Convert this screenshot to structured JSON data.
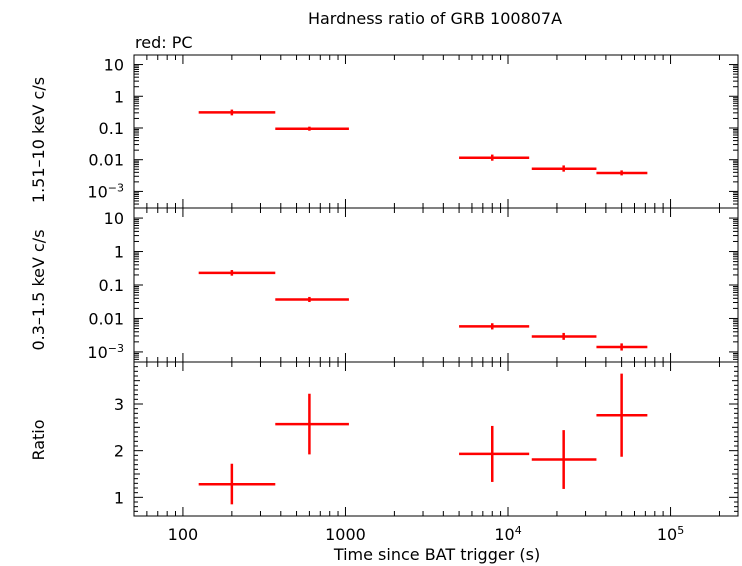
{
  "chart_data": {
    "type": "scatter",
    "title": "Hardness ratio of GRB 100807A",
    "annotation": "red: PC",
    "xlabel": "Time since BAT trigger (s)",
    "x_scale": "log",
    "xlim": [
      50,
      260000
    ],
    "x_ticks": [
      {
        "value": 100,
        "label": "100"
      },
      {
        "value": 1000,
        "label": "1000"
      },
      {
        "value": 10000,
        "label": "10",
        "sup": "4"
      },
      {
        "value": 100000,
        "label": "10",
        "sup": "5"
      }
    ],
    "color": "#ff0000",
    "panels": [
      {
        "ylabel": "1.51–10 keV c/s",
        "y_scale": "log",
        "ylim": [
          0.0003,
          20
        ],
        "y_ticks": [
          {
            "value": 10,
            "label": "10"
          },
          {
            "value": 1,
            "label": "1"
          },
          {
            "value": 0.1,
            "label": "0.1"
          },
          {
            "value": 0.01,
            "label": "0.01"
          },
          {
            "value": 0.001,
            "label": "10",
            "sup": "−3"
          }
        ],
        "points": [
          {
            "x": 200,
            "xlo": 125,
            "xhi": 370,
            "y": 0.31,
            "ylo": 0.25,
            "yhi": 0.38
          },
          {
            "x": 600,
            "xlo": 370,
            "xhi": 1050,
            "y": 0.095,
            "ylo": 0.082,
            "yhi": 0.11
          },
          {
            "x": 8000,
            "xlo": 5000,
            "xhi": 13500,
            "y": 0.0115,
            "ylo": 0.0093,
            "yhi": 0.0145
          },
          {
            "x": 22000,
            "xlo": 14000,
            "xhi": 35000,
            "y": 0.0052,
            "ylo": 0.0042,
            "yhi": 0.0066
          },
          {
            "x": 50000,
            "xlo": 35000,
            "xhi": 72000,
            "y": 0.0038,
            "ylo": 0.0032,
            "yhi": 0.0046
          }
        ]
      },
      {
        "ylabel": "0.3–1.5 keV c/s",
        "y_scale": "log",
        "ylim": [
          0.0005,
          20
        ],
        "y_ticks": [
          {
            "value": 10,
            "label": "10"
          },
          {
            "value": 1,
            "label": "1"
          },
          {
            "value": 0.1,
            "label": "0.1"
          },
          {
            "value": 0.01,
            "label": "0.01"
          },
          {
            "value": 0.001,
            "label": "10",
            "sup": "−3"
          }
        ],
        "points": [
          {
            "x": 200,
            "xlo": 125,
            "xhi": 370,
            "y": 0.23,
            "ylo": 0.19,
            "yhi": 0.28
          },
          {
            "x": 600,
            "xlo": 370,
            "xhi": 1050,
            "y": 0.037,
            "ylo": 0.031,
            "yhi": 0.044
          },
          {
            "x": 8000,
            "xlo": 5000,
            "xhi": 13500,
            "y": 0.0058,
            "ylo": 0.0047,
            "yhi": 0.0072
          },
          {
            "x": 22000,
            "xlo": 14000,
            "xhi": 35000,
            "y": 0.0029,
            "ylo": 0.0023,
            "yhi": 0.0037
          },
          {
            "x": 50000,
            "xlo": 35000,
            "xhi": 72000,
            "y": 0.0014,
            "ylo": 0.0011,
            "yhi": 0.0018
          }
        ]
      },
      {
        "ylabel": "Ratio",
        "y_scale": "linear",
        "ylim": [
          0.6,
          3.9
        ],
        "y_ticks": [
          {
            "value": 1,
            "label": "1"
          },
          {
            "value": 2,
            "label": "2"
          },
          {
            "value": 3,
            "label": "3"
          }
        ],
        "points": [
          {
            "x": 200,
            "xlo": 125,
            "xhi": 370,
            "y": 1.28,
            "ylo": 0.85,
            "yhi": 1.72
          },
          {
            "x": 600,
            "xlo": 370,
            "xhi": 1050,
            "y": 2.57,
            "ylo": 1.92,
            "yhi": 3.22
          },
          {
            "x": 8000,
            "xlo": 5000,
            "xhi": 13500,
            "y": 1.93,
            "ylo": 1.33,
            "yhi": 2.53
          },
          {
            "x": 22000,
            "xlo": 14000,
            "xhi": 35000,
            "y": 1.81,
            "ylo": 1.18,
            "yhi": 2.44
          },
          {
            "x": 50000,
            "xlo": 35000,
            "xhi": 72000,
            "y": 2.76,
            "ylo": 1.87,
            "yhi": 3.65
          }
        ]
      }
    ]
  }
}
